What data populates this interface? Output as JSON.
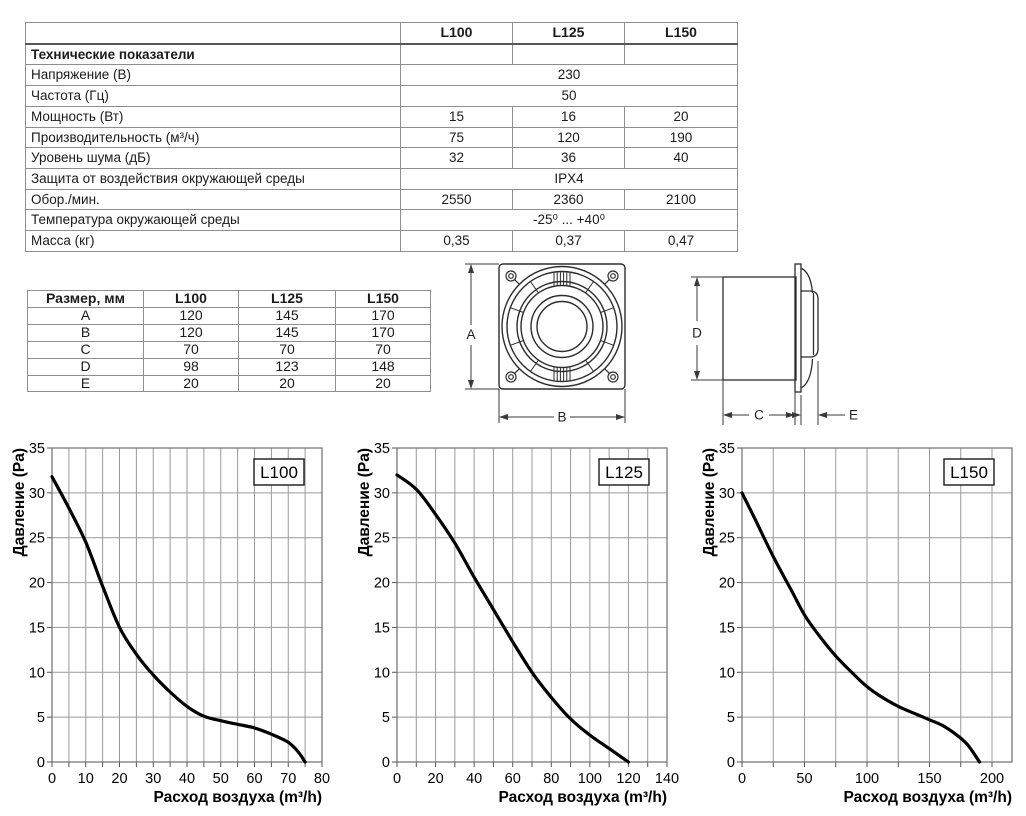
{
  "spec_table": {
    "col_headers": [
      "",
      "L100",
      "L125",
      "L150"
    ],
    "section_header": "Технические показатели",
    "rows": [
      {
        "label": "Напряжение (В)",
        "merged": true,
        "values": [
          "230"
        ]
      },
      {
        "label": "Частота (Гц)",
        "merged": true,
        "values": [
          "50"
        ]
      },
      {
        "label": "Мощность (Вт)",
        "merged": false,
        "values": [
          "15",
          "16",
          "20"
        ]
      },
      {
        "label": "Производительность (м³/ч)",
        "merged": false,
        "values": [
          "75",
          "120",
          "190"
        ]
      },
      {
        "label": "Уровень шума (дБ)",
        "merged": false,
        "values": [
          "32",
          "36",
          "40"
        ]
      },
      {
        "label": "Защита от воздействия  окружающей среды",
        "merged": true,
        "values": [
          "IPX4"
        ]
      },
      {
        "label": "Обор./мин.",
        "merged": false,
        "values": [
          "2550",
          "2360",
          "2100"
        ]
      },
      {
        "label": "Температура окружающей среды",
        "merged": true,
        "values": [
          "-25⁰ ... +40⁰"
        ]
      },
      {
        "label": "Масса (кг)",
        "merged": false,
        "values": [
          "0,35",
          "0,37",
          "0,47"
        ]
      }
    ]
  },
  "dim_table": {
    "headers": [
      "Размер, мм",
      "L100",
      "L125",
      "L150"
    ],
    "rows": [
      {
        "label": "A",
        "values": [
          "120",
          "145",
          "170"
        ]
      },
      {
        "label": "B",
        "values": [
          "120",
          "145",
          "170"
        ]
      },
      {
        "label": "C",
        "values": [
          "70",
          "70",
          "70"
        ]
      },
      {
        "label": "D",
        "values": [
          "98",
          "123",
          "148"
        ]
      },
      {
        "label": "E",
        "values": [
          "20",
          "20",
          "20"
        ]
      }
    ]
  },
  "drawings": {
    "front_view": {
      "height_label": "A",
      "width_label": "B"
    },
    "side_view": {
      "depth_label": "C",
      "height_label": "D",
      "cover_label": "E"
    }
  },
  "colors": {
    "grid": "#9a9a9a",
    "plot_border": "#6e6e6e",
    "curve": "#000000",
    "table_border": "#8e8e8e",
    "text": "#1b1b1b"
  },
  "chart_data": [
    {
      "type": "line",
      "title_box": "L100",
      "xlabel": "Расход воздуха (m³/h)",
      "ylabel": "Давление (Pa)",
      "xlim": [
        0,
        80
      ],
      "ylim": [
        0,
        35
      ],
      "x_label_step": 10,
      "x_grid_step": 5,
      "y_label_step": 5,
      "y_grid_step": 5,
      "grid": true,
      "legend": "none",
      "series": [
        {
          "name": "L100",
          "points": [
            [
              0,
              31.8
            ],
            [
              5,
              28.3
            ],
            [
              10,
              24.5
            ],
            [
              15,
              19.6
            ],
            [
              20,
              15
            ],
            [
              25,
              12
            ],
            [
              30,
              9.7
            ],
            [
              35,
              7.8
            ],
            [
              40,
              6.2
            ],
            [
              45,
              5.1
            ],
            [
              50,
              4.6
            ],
            [
              55,
              4.2
            ],
            [
              60,
              3.8
            ],
            [
              65,
              3.1
            ],
            [
              70,
              2.2
            ],
            [
              73,
              1.1
            ],
            [
              75,
              0
            ]
          ]
        }
      ]
    },
    {
      "type": "line",
      "title_box": "L125",
      "xlabel": "Расход воздуха (m³/h)",
      "ylabel": "Давление (Pa)",
      "xlim": [
        0,
        140
      ],
      "ylim": [
        0,
        35
      ],
      "x_label_step": 20,
      "x_grid_step": 10,
      "y_label_step": 5,
      "y_grid_step": 5,
      "grid": true,
      "legend": "none",
      "series": [
        {
          "name": "L125",
          "points": [
            [
              0,
              32
            ],
            [
              10,
              30.4
            ],
            [
              20,
              27.6
            ],
            [
              30,
              24.4
            ],
            [
              40,
              20.6
            ],
            [
              50,
              17
            ],
            [
              60,
              13.4
            ],
            [
              70,
              10
            ],
            [
              80,
              7.2
            ],
            [
              90,
              4.8
            ],
            [
              100,
              3
            ],
            [
              110,
              1.5
            ],
            [
              120,
              0
            ]
          ]
        }
      ]
    },
    {
      "type": "line",
      "title_box": "L150",
      "xlabel": "Расход воздуха (m³/h)",
      "ylabel": "Давление (Pa)",
      "xlim": [
        0,
        216
      ],
      "ylim": [
        0,
        35
      ],
      "x_label_step": 50,
      "x_grid_step": 25,
      "y_label_step": 5,
      "y_grid_step": 5,
      "grid": true,
      "legend": "none",
      "series": [
        {
          "name": "L150",
          "points": [
            [
              0,
              30
            ],
            [
              10,
              27.2
            ],
            [
              25,
              22.9
            ],
            [
              40,
              19
            ],
            [
              50,
              16.4
            ],
            [
              60,
              14.4
            ],
            [
              75,
              11.8
            ],
            [
              90,
              9.7
            ],
            [
              100,
              8.4
            ],
            [
              110,
              7.4
            ],
            [
              125,
              6.2
            ],
            [
              140,
              5.3
            ],
            [
              150,
              4.7
            ],
            [
              160,
              4.1
            ],
            [
              170,
              3.2
            ],
            [
              180,
              2
            ],
            [
              190,
              0
            ]
          ]
        }
      ]
    }
  ]
}
